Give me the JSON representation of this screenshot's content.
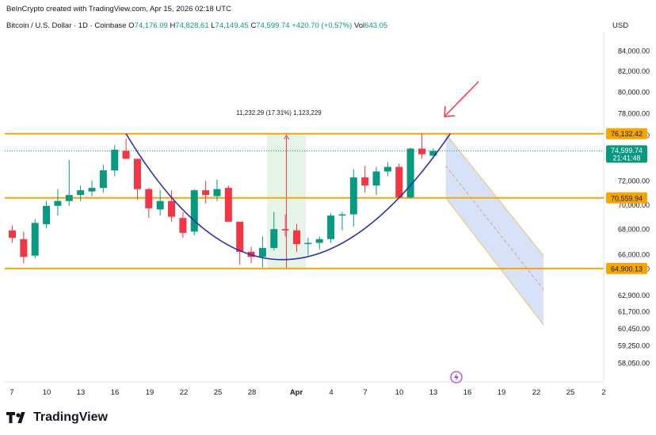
{
  "header": {
    "created_by": "BeInCrypto created with TradingView.com, Apr 15, 2026 02:18 UTC",
    "symbol": "Bitcoin / U.S. Dollar · 1D · Coinbase",
    "o_label": "O",
    "o": "74,176.09",
    "h_label": "H",
    "h": "74,828.61",
    "l_label": "L",
    "l": "74,149.45",
    "c_label": "C",
    "c": "74,599.74",
    "change": "+420.70 (+0.57%)",
    "vol_label": "Vol",
    "vol": "643.05"
  },
  "currency": "USD",
  "logo_text": "TradingView",
  "colors": {
    "up": "#089981",
    "down": "#f23645",
    "level": "#f7a600",
    "cup": "#2a2fb5",
    "arrow": "#f23645",
    "channel_fill": "#c9d8f7",
    "measure_fill": "#e3f3e6",
    "measure_line": "#f23645"
  },
  "chart_data": {
    "type": "candlestick",
    "title": "",
    "xlabel": "",
    "ylabel": "",
    "y_scale": "log",
    "ylim": [
      57500,
      85500
    ],
    "y_ticks": [
      "84,000.00",
      "82,000.00",
      "80,000.00",
      "78,000.00",
      "76,000.00",
      "72,000.00",
      "70,000.00",
      "68,000.00",
      "66,000.00",
      "64,900.00",
      "62,900.00",
      "61,700.00",
      "60,450.00",
      "59,250.00",
      "58,050.00"
    ],
    "x_ticks": [
      "7",
      "10",
      "13",
      "16",
      "19",
      "22",
      "25",
      "28",
      "Apr",
      "4",
      "7",
      "10",
      "13",
      "16",
      "19",
      "22",
      "25",
      "2"
    ],
    "candles": [
      {
        "o": 67900,
        "h": 68300,
        "l": 66900,
        "c": 67300
      },
      {
        "o": 67200,
        "h": 67800,
        "l": 65300,
        "c": 65800
      },
      {
        "o": 65900,
        "h": 68800,
        "l": 65700,
        "c": 68500
      },
      {
        "o": 68400,
        "h": 70300,
        "l": 68100,
        "c": 69900
      },
      {
        "o": 69900,
        "h": 71300,
        "l": 69100,
        "c": 70300
      },
      {
        "o": 70300,
        "h": 73800,
        "l": 69900,
        "c": 70800
      },
      {
        "o": 70800,
        "h": 71600,
        "l": 70300,
        "c": 71200
      },
      {
        "o": 71100,
        "h": 72000,
        "l": 70700,
        "c": 71400
      },
      {
        "o": 71400,
        "h": 73400,
        "l": 71000,
        "c": 72900
      },
      {
        "o": 72900,
        "h": 75100,
        "l": 72400,
        "c": 74700
      },
      {
        "o": 74600,
        "h": 75700,
        "l": 73900,
        "c": 73900
      },
      {
        "o": 73900,
        "h": 73800,
        "l": 70400,
        "c": 71300
      },
      {
        "o": 71300,
        "h": 71400,
        "l": 68900,
        "c": 69700
      },
      {
        "o": 69600,
        "h": 71200,
        "l": 69100,
        "c": 70300
      },
      {
        "o": 70300,
        "h": 71200,
        "l": 68600,
        "c": 69000
      },
      {
        "o": 68900,
        "h": 69400,
        "l": 67300,
        "c": 67700
      },
      {
        "o": 67800,
        "h": 71300,
        "l": 67500,
        "c": 71200
      },
      {
        "o": 71200,
        "h": 72000,
        "l": 70100,
        "c": 70800
      },
      {
        "o": 70700,
        "h": 72100,
        "l": 70300,
        "c": 71300
      },
      {
        "o": 71400,
        "h": 71600,
        "l": 68600,
        "c": 68600
      },
      {
        "o": 68600,
        "h": 68600,
        "l": 65200,
        "c": 66200
      },
      {
        "o": 66200,
        "h": 66600,
        "l": 65300,
        "c": 65800
      },
      {
        "o": 65800,
        "h": 67400,
        "l": 65000,
        "c": 66500
      },
      {
        "o": 66500,
        "h": 69400,
        "l": 66300,
        "c": 68000
      },
      {
        "o": 68000,
        "h": 69200,
        "l": 67400,
        "c": 67900
      },
      {
        "o": 67900,
        "h": 68400,
        "l": 66200,
        "c": 66800
      },
      {
        "o": 66800,
        "h": 67300,
        "l": 65900,
        "c": 66900
      },
      {
        "o": 66900,
        "h": 67400,
        "l": 66400,
        "c": 67200
      },
      {
        "o": 67200,
        "h": 69300,
        "l": 66900,
        "c": 69100
      },
      {
        "o": 69100,
        "h": 69400,
        "l": 67900,
        "c": 69200
      },
      {
        "o": 69200,
        "h": 73000,
        "l": 68200,
        "c": 72300
      },
      {
        "o": 72300,
        "h": 73300,
        "l": 71000,
        "c": 71600
      },
      {
        "o": 71600,
        "h": 73200,
        "l": 70800,
        "c": 72800
      },
      {
        "o": 72800,
        "h": 73600,
        "l": 72400,
        "c": 73200
      },
      {
        "o": 73200,
        "h": 73500,
        "l": 70600,
        "c": 70600
      },
      {
        "o": 70600,
        "h": 74900,
        "l": 70500,
        "c": 74800
      },
      {
        "o": 74800,
        "h": 76132,
        "l": 73900,
        "c": 74300
      },
      {
        "o": 74176,
        "h": 74829,
        "l": 74149,
        "c": 74600
      }
    ],
    "levels": [
      {
        "value": 76132.42,
        "label": "76,132.42"
      },
      {
        "value": 70559.94,
        "label": "70,559.94"
      },
      {
        "value": 64900.13,
        "label": "64,900.13"
      }
    ],
    "last_price": {
      "label": "74,599.74",
      "countdown": "21:41:48"
    },
    "measure": {
      "label": "11,232.29 (17.31%) 1,123,229",
      "from": 64900,
      "to": 76132
    },
    "projection": {
      "start_top": 76132,
      "start_bottom": 70560,
      "end_top": 65900,
      "end_bottom": 60700,
      "mid_end": 63300
    }
  }
}
